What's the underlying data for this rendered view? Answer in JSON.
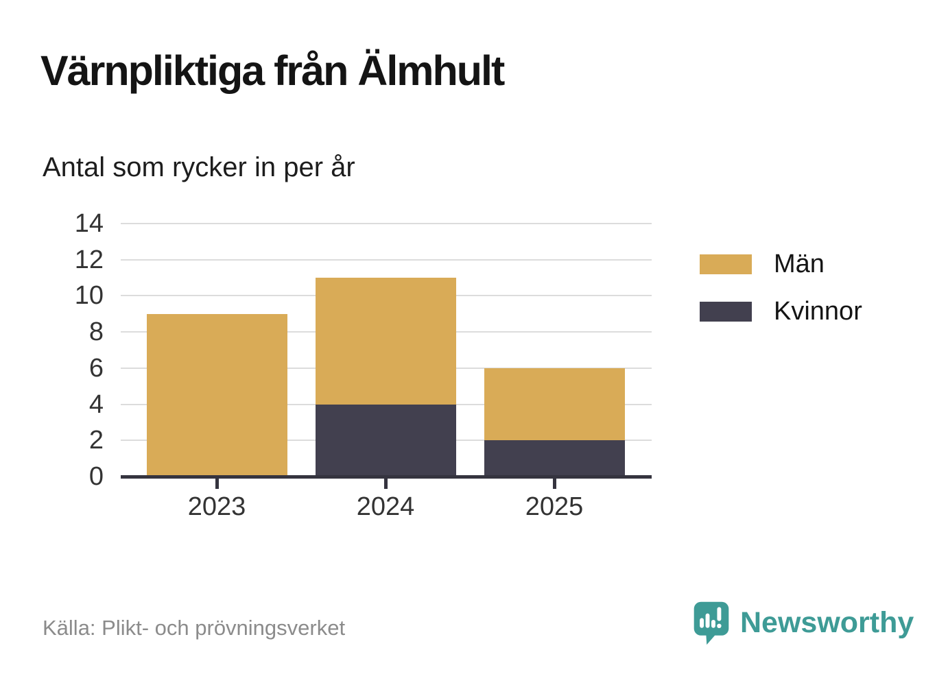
{
  "header": {
    "title": "Värnpliktiga från Älmhult",
    "subtitle": "Antal som rycker in per år"
  },
  "chart_data": {
    "type": "bar",
    "stacked": true,
    "title": "Värnpliktiga från Älmhult",
    "subtitle": "Antal som rycker in per år",
    "categories": [
      "2023",
      "2024",
      "2025"
    ],
    "series": [
      {
        "name": "Män",
        "color": "#d9ab57",
        "values": [
          9,
          7,
          4
        ]
      },
      {
        "name": "Kvinnor",
        "color": "#42404f",
        "values": [
          0,
          4,
          2
        ]
      }
    ],
    "stack_bottom_first": [
      "Kvinnor",
      "Män"
    ],
    "stack_totals": [
      9,
      11,
      6
    ],
    "xlabel": "",
    "ylabel": "",
    "ylim": [
      0,
      14
    ],
    "y_ticks": [
      0,
      2,
      4,
      6,
      8,
      10,
      12,
      14
    ],
    "grid": true,
    "gridline_color": "#dcdcdc",
    "axis_color": "#35343f",
    "legend_position": "right"
  },
  "footer": {
    "source": "Källa: Plikt- och prövningsverket",
    "brand": "Newsworthy",
    "brand_color": "#3e9b96",
    "logo_icon": "speech-bubble-bar-chart-exclamation-icon"
  }
}
